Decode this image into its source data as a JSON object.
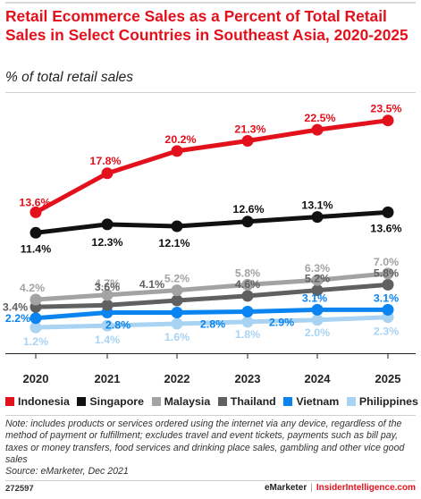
{
  "header": {
    "title": "Retail Ecommerce Sales as a Percent of Total Retail Sales in Select Countries in Southeast Asia, 2020-2025",
    "subtitle": "% of total retail sales"
  },
  "chart_data": {
    "type": "line",
    "title": "Retail Ecommerce Sales as a Percent of Total Retail Sales in Select Countries in Southeast Asia, 2020-2025",
    "subtitle": "% of total retail sales",
    "x": [
      "2020",
      "2021",
      "2022",
      "2023",
      "2024",
      "2025"
    ],
    "ylim": [
      0,
      25
    ],
    "grid": false,
    "legend_position": "bottom",
    "series": [
      {
        "name": "Indonesia",
        "color": "#e3111c",
        "values": [
          13.6,
          17.8,
          20.2,
          21.3,
          22.5,
          23.5
        ],
        "labels": [
          "13.6%",
          "17.8%",
          "20.2%",
          "21.3%",
          "22.5%",
          "23.5%"
        ]
      },
      {
        "name": "Singapore",
        "color": "#111111",
        "values": [
          11.4,
          12.3,
          12.1,
          12.6,
          13.1,
          13.6
        ],
        "labels": [
          "11.4%",
          "12.3%",
          "12.1%",
          "12.6%",
          "13.1%",
          "13.6%"
        ]
      },
      {
        "name": "Malaysia",
        "color": "#a3a3a3",
        "values": [
          4.2,
          4.7,
          5.2,
          5.8,
          6.3,
          7.0
        ],
        "labels": [
          "4.2%",
          "4.7%",
          "5.2%",
          "5.8%",
          "6.3%",
          "7.0%"
        ]
      },
      {
        "name": "Thailand",
        "color": "#606060",
        "values": [
          3.4,
          3.6,
          4.1,
          4.6,
          5.2,
          5.8
        ],
        "labels": [
          "3.4%",
          "3.6%",
          "4.1%",
          "4.6%",
          "5.2%",
          "5.8%"
        ]
      },
      {
        "name": "Vietnam",
        "color": "#0a84f0",
        "values": [
          2.2,
          2.8,
          2.8,
          2.9,
          3.1,
          3.1
        ],
        "labels": [
          "2.2%",
          "2.8%",
          "2.8%",
          "2.9%",
          "3.1%",
          "3.1%"
        ]
      },
      {
        "name": "Philippines",
        "color": "#a9d3f2",
        "values": [
          1.2,
          1.4,
          1.6,
          1.8,
          2.0,
          2.3
        ],
        "labels": [
          "1.2%",
          "1.4%",
          "1.6%",
          "1.8%",
          "2.0%",
          "2.3%"
        ]
      }
    ]
  },
  "note": "Note: includes products or services ordered using the internet via any device, regardless of the method of payment or fulfillment; excludes travel and event tickets, payments such as bill pay, taxes or money transfers, food services and drinking place sales, gambling and other vice good sales",
  "source": "Source: eMarketer, Dec 2021",
  "footer": {
    "chart_id": "272597",
    "brand_left": "eMarketer",
    "separator": "|",
    "brand_right": "InsiderIntelligence.com"
  }
}
